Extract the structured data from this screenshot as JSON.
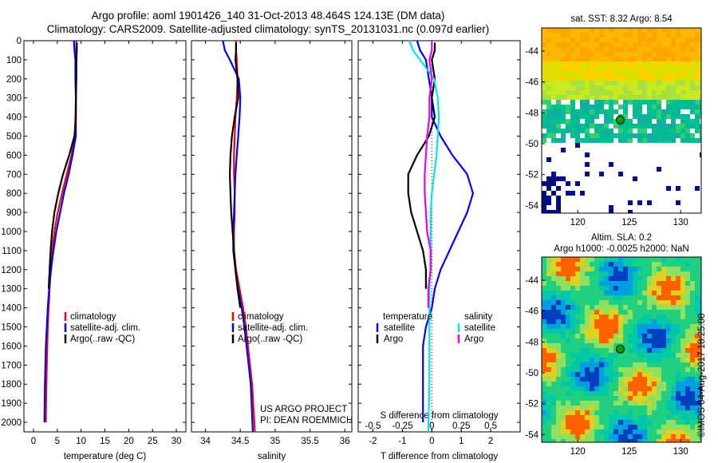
{
  "titles": {
    "line1": "Argo profile: aoml 1901426_140 31-Oct-2013 48.464S 124.13E (DM data)",
    "line2": "Climatology: CARS2009. Satellite-adjusted climatology: synTS_20131031.nc (0.097d earlier)"
  },
  "colors": {
    "climatology": "#ff0000",
    "satellite": "#0000ff",
    "argo": "#000000",
    "sat_salinity": "#00e5ee",
    "argo_salinity": "#ee00ee"
  },
  "chart_data": [
    {
      "type": "line",
      "xlabel": "temperature (deg C)",
      "xlim": [
        -2,
        32
      ],
      "xticks": [
        0,
        5,
        10,
        15,
        20,
        25,
        30
      ],
      "ylim": [
        0,
        2050
      ],
      "yticks": [
        0,
        100,
        200,
        300,
        400,
        500,
        600,
        700,
        800,
        900,
        1000,
        1100,
        1200,
        1300,
        1400,
        1500,
        1600,
        1700,
        1800,
        1900,
        2000
      ],
      "y_reversed": true,
      "legend": [
        "climatology",
        "satellite-adj. clim.",
        "Argo(..raw -QC)"
      ],
      "series": [
        {
          "name": "climatology",
          "color": "#ff0000",
          "x": [
            9.0,
            9.0,
            9.0,
            8.9,
            8.9,
            8.8,
            8.7,
            8.0,
            7.0,
            6.0,
            5.1,
            4.4,
            3.9,
            3.6,
            3.4,
            3.2,
            3.0,
            2.9,
            2.8,
            2.7,
            2.6
          ],
          "y": [
            0,
            50,
            100,
            200,
            300,
            400,
            500,
            600,
            700,
            800,
            900,
            1000,
            1100,
            1200,
            1300,
            1400,
            1500,
            1600,
            1700,
            1800,
            2000
          ]
        },
        {
          "name": "satellite-adj. clim.",
          "color": "#0000ff",
          "x": [
            8.5,
            8.6,
            8.8,
            8.8,
            8.9,
            8.9,
            8.9,
            8.2,
            7.4,
            6.4,
            5.6,
            4.8,
            4.2,
            3.7,
            3.3,
            3.0,
            2.8,
            2.6,
            2.5,
            2.4,
            2.3
          ],
          "y": [
            0,
            50,
            100,
            200,
            300,
            400,
            500,
            600,
            700,
            800,
            900,
            1000,
            1100,
            1200,
            1300,
            1400,
            1500,
            1600,
            1700,
            1800,
            2000
          ]
        },
        {
          "name": "Argo(..raw -QC)",
          "color": "#000000",
          "x": [
            9.1,
            9.1,
            9.0,
            9.0,
            8.9,
            8.9,
            8.6,
            7.5,
            6.2,
            5.2,
            4.4,
            3.9,
            3.6,
            3.4,
            3.2
          ],
          "y": [
            10,
            50,
            100,
            200,
            300,
            400,
            500,
            600,
            700,
            800,
            900,
            1000,
            1100,
            1200,
            1300
          ]
        }
      ]
    },
    {
      "type": "line",
      "xlabel": "salinity",
      "xlim": [
        33.8,
        36.1
      ],
      "xticks": [
        34,
        34.5,
        35,
        35.5,
        36
      ],
      "ylim": [
        0,
        2050
      ],
      "y_reversed": true,
      "legend": [
        "climatology",
        "satellite-adj. clim.",
        "Argo(..raw -QC)"
      ],
      "annotation": [
        "US ARGO PROJECT",
        "PI: DEAN ROEMMICH"
      ],
      "series": [
        {
          "name": "climatology",
          "color": "#ff0000",
          "x": [
            34.44,
            34.44,
            34.45,
            34.46,
            34.45,
            34.43,
            34.42,
            34.41,
            34.41,
            34.42,
            34.42,
            34.41,
            34.41,
            34.44,
            34.49,
            34.54,
            34.58,
            34.61,
            34.64,
            34.67,
            34.71
          ],
          "y": [
            0,
            50,
            100,
            200,
            300,
            400,
            500,
            600,
            700,
            800,
            900,
            1000,
            1100,
            1200,
            1300,
            1400,
            1500,
            1600,
            1700,
            1800,
            2050
          ]
        },
        {
          "name": "satellite-adj. clim.",
          "color": "#0000ff",
          "x": [
            34.25,
            34.28,
            34.35,
            34.48,
            34.5,
            34.49,
            34.47,
            34.45,
            34.43,
            34.42,
            34.41,
            34.4,
            34.4,
            34.43,
            34.47,
            34.52,
            34.56,
            34.59,
            34.62,
            34.65,
            34.68
          ],
          "y": [
            0,
            50,
            100,
            200,
            300,
            400,
            500,
            600,
            700,
            800,
            900,
            1000,
            1100,
            1200,
            1300,
            1400,
            1500,
            1600,
            1700,
            1800,
            2050
          ]
        },
        {
          "name": "Argo(..raw -QC)",
          "color": "#000000",
          "x": [
            34.44,
            34.44,
            34.43,
            34.46,
            34.47,
            34.42,
            34.38,
            34.36,
            34.35,
            34.36,
            34.37,
            34.39,
            34.41,
            34.43,
            34.46,
            34.5
          ],
          "y": [
            10,
            50,
            100,
            200,
            300,
            400,
            500,
            600,
            700,
            800,
            900,
            1000,
            1100,
            1200,
            1300,
            1400
          ]
        }
      ]
    },
    {
      "type": "line",
      "xlabel": "T difference from climatology",
      "xlabel_top": "S difference from climatology",
      "xlim": [
        -2.5,
        3.0
      ],
      "xticks": [
        -2,
        -1,
        0,
        1,
        2
      ],
      "xticks_top": [
        -0.5,
        -0.25,
        0,
        0.25,
        0.5
      ],
      "xticklabels_top": [
        "-0.5",
        "-0.25",
        "0",
        "0.25",
        "0.5"
      ],
      "ylim": [
        0,
        2050
      ],
      "y_reversed": true,
      "legend_temperature": [
        "temperature",
        "satellite",
        "Argo"
      ],
      "legend_salinity": [
        "salinity",
        "satellite",
        "Argo"
      ],
      "series": [
        {
          "name": "temperature satellite",
          "color": "#0000ff",
          "x": [
            -0.5,
            -0.4,
            -0.2,
            -0.1,
            0.0,
            0.0,
            0.3,
            0.7,
            1.2,
            1.4,
            1.2,
            0.9,
            0.6,
            0.3,
            0.1,
            0.0,
            -0.2,
            -0.3,
            -0.3,
            -0.3,
            -0.3
          ],
          "y": [
            0,
            50,
            100,
            200,
            300,
            400,
            500,
            600,
            700,
            800,
            900,
            1000,
            1100,
            1200,
            1300,
            1400,
            1500,
            1600,
            1700,
            1800,
            2000
          ]
        },
        {
          "name": "temperature Argo",
          "color": "#000000",
          "x": [
            0.1,
            0.1,
            0.0,
            0.1,
            0.0,
            0.1,
            -0.1,
            -0.5,
            -0.8,
            -0.8,
            -0.7,
            -0.5,
            -0.3,
            -0.2,
            -0.2
          ],
          "y": [
            10,
            50,
            100,
            200,
            300,
            400,
            500,
            600,
            700,
            800,
            900,
            1000,
            1100,
            1200,
            1300
          ]
        },
        {
          "name": "salinity satellite",
          "color": "#00e5ee",
          "x": [
            -0.19,
            -0.16,
            -0.1,
            0.02,
            0.05,
            0.06,
            0.05,
            0.04,
            0.02,
            0.0,
            -0.01,
            -0.01,
            -0.01,
            -0.01,
            -0.02,
            -0.02,
            -0.02,
            -0.02,
            -0.02,
            -0.02,
            -0.03
          ],
          "y": [
            0,
            50,
            100,
            200,
            300,
            400,
            500,
            600,
            700,
            800,
            900,
            1000,
            1100,
            1200,
            1300,
            1400,
            1500,
            1600,
            1700,
            1800,
            2050
          ]
        },
        {
          "name": "salinity Argo",
          "color": "#ee00ee",
          "x": [
            0.0,
            0.0,
            -0.02,
            0.0,
            -0.02,
            -0.02,
            -0.04,
            -0.05,
            -0.06,
            -0.06,
            -0.05,
            -0.04,
            -0.01,
            -0.01,
            -0.03,
            -0.03
          ],
          "y": [
            10,
            50,
            100,
            200,
            300,
            400,
            500,
            600,
            700,
            800,
            900,
            1000,
            1100,
            1200,
            1300,
            1400
          ]
        }
      ]
    },
    {
      "type": "heatmap",
      "title": "sat. SST: 8.32  Argo: 8.54",
      "xlim": [
        116.5,
        132
      ],
      "xticks": [
        120,
        125,
        130
      ],
      "ylim": [
        -54.5,
        -42.5
      ],
      "yticks": [
        -44,
        -46,
        -48,
        -50,
        -52,
        -54
      ],
      "marker": {
        "lon": 124.13,
        "lat": -48.464,
        "color": "#00a000"
      }
    },
    {
      "type": "heatmap",
      "title_lines": [
        "Altim. SLA: 0.2",
        "Argo h1000: -0.0025 h2000: NaN"
      ],
      "xlim": [
        116.5,
        132
      ],
      "xticks": [
        120,
        125,
        130
      ],
      "ylim": [
        -54.5,
        -42.5
      ],
      "yticks": [
        -44,
        -46,
        -48,
        -50,
        -52,
        -54
      ],
      "marker": {
        "lon": 124.13,
        "lat": -48.464,
        "color": "#00a000"
      }
    }
  ],
  "stamp": "©IMOS 04-Aug-2017 18:25:08"
}
